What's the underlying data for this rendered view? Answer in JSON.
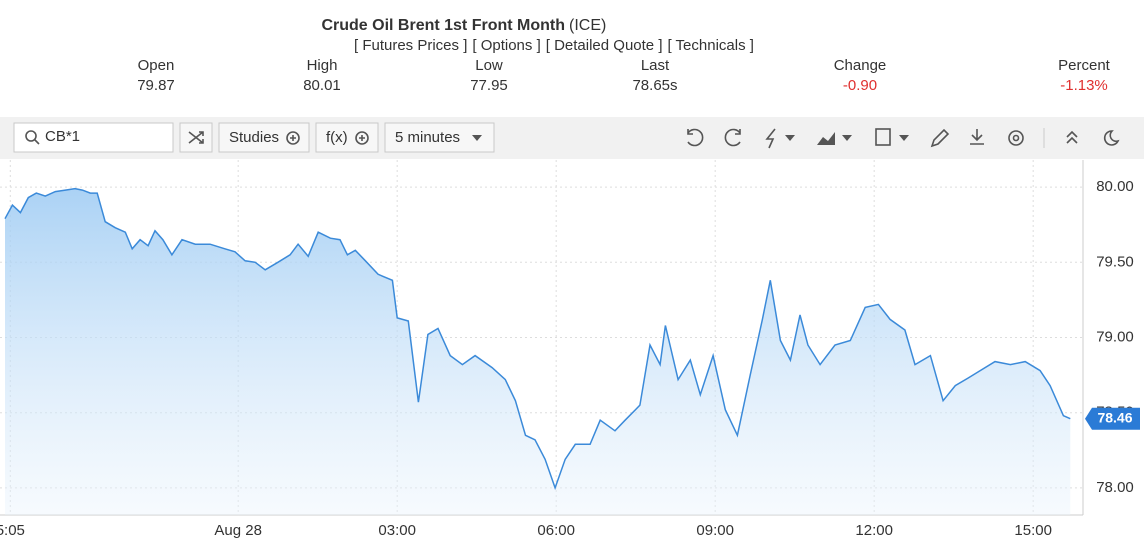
{
  "header": {
    "title": "Crude Oil Brent 1st Front Month",
    "exchange": "(ICE)",
    "links": [
      "[ Futures Prices ]",
      "[ Options ]",
      "[ Detailed Quote ]",
      "[ Technicals ]"
    ]
  },
  "quote": [
    {
      "label": "Open",
      "value": "79.87"
    },
    {
      "label": "High",
      "value": "80.01"
    },
    {
      "label": "Low",
      "value": "77.95"
    },
    {
      "label": "Last",
      "value": "78.65s"
    },
    {
      "label": "Change",
      "value": "-0.90"
    },
    {
      "label": "Percent",
      "value": "-1.13%"
    }
  ],
  "toolbar": {
    "symbol": "CB*1",
    "studies": "Studies",
    "fx": "f(x)",
    "interval": "5 minutes"
  },
  "chart_data": {
    "type": "line",
    "color": "#3b8ad9",
    "x": [
      -4.4,
      -4.26,
      -4.11,
      -3.96,
      -3.81,
      -3.64,
      -3.45,
      -3.26,
      -3.08,
      -2.94,
      -2.79,
      -2.66,
      -2.51,
      -2.32,
      -2.13,
      -2.0,
      -1.85,
      -1.7,
      -1.57,
      -1.42,
      -1.25,
      -1.06,
      -0.81,
      -0.53,
      -0.25,
      -0.06,
      0.13,
      0.32,
      0.51,
      0.75,
      0.98,
      1.13,
      1.32,
      1.51,
      1.74,
      1.92,
      2.06,
      2.21,
      2.4,
      2.64,
      2.91,
      3.0,
      3.21,
      3.4,
      3.58,
      3.77,
      4.0,
      4.23,
      4.47,
      4.79,
      5.04,
      5.23,
      5.42,
      5.6,
      5.79,
      5.98,
      6.17,
      6.36,
      6.64,
      6.83,
      7.11,
      7.3,
      7.58,
      7.77,
      7.96,
      8.06,
      8.3,
      8.53,
      8.72,
      8.96,
      9.19,
      9.42,
      9.66,
      9.89,
      10.04,
      10.23,
      10.42,
      10.6,
      10.75,
      10.98,
      11.26,
      11.55,
      11.83,
      12.08,
      12.3,
      12.58,
      12.77,
      13.06,
      13.3,
      13.53,
      13.77,
      14.0,
      14.28,
      14.57,
      14.85,
      15.13,
      15.32,
      15.57,
      15.7
    ],
    "values": [
      79.79,
      79.88,
      79.83,
      79.93,
      79.96,
      79.94,
      79.97,
      79.98,
      79.99,
      79.98,
      79.96,
      79.96,
      79.77,
      79.73,
      79.7,
      79.59,
      79.65,
      79.61,
      79.71,
      79.65,
      79.55,
      79.65,
      79.62,
      79.62,
      79.59,
      79.57,
      79.51,
      79.5,
      79.45,
      79.5,
      79.55,
      79.62,
      79.54,
      79.7,
      79.66,
      79.65,
      79.55,
      79.58,
      79.51,
      79.42,
      79.38,
      79.13,
      79.11,
      78.57,
      79.02,
      79.06,
      78.88,
      78.82,
      78.88,
      78.8,
      78.72,
      78.58,
      78.35,
      78.32,
      78.19,
      78.0,
      78.19,
      78.29,
      78.29,
      78.45,
      78.38,
      78.45,
      78.55,
      78.95,
      78.82,
      79.08,
      78.72,
      78.85,
      78.62,
      78.88,
      78.52,
      78.35,
      78.75,
      79.12,
      79.38,
      78.98,
      78.85,
      79.15,
      78.95,
      78.82,
      78.95,
      78.98,
      79.2,
      79.22,
      79.12,
      79.05,
      78.82,
      78.88,
      78.58,
      78.68,
      78.73,
      78.78,
      78.84,
      78.82,
      78.84,
      78.78,
      78.68,
      78.48,
      78.46
    ],
    "xlim": [
      -4.4,
      15.94
    ],
    "ylim": [
      77.82,
      80.18
    ],
    "xticks": [
      {
        "value": -4.3,
        "label": "5:05"
      },
      {
        "value": 0,
        "label": "Aug 28"
      },
      {
        "value": 3,
        "label": "03:00"
      },
      {
        "value": 6,
        "label": "06:00"
      },
      {
        "value": 9,
        "label": "09:00"
      },
      {
        "value": 12,
        "label": "12:00"
      },
      {
        "value": 15,
        "label": "15:00"
      }
    ],
    "yticks": [
      {
        "value": 78,
        "label": "78.00"
      },
      {
        "value": 78.5,
        "label": "78.50"
      },
      {
        "value": 79,
        "label": "79.00"
      },
      {
        "value": 79.5,
        "label": "79.50"
      },
      {
        "value": 80,
        "label": "80.00"
      }
    ],
    "last_price": 78.46,
    "grid": true
  }
}
